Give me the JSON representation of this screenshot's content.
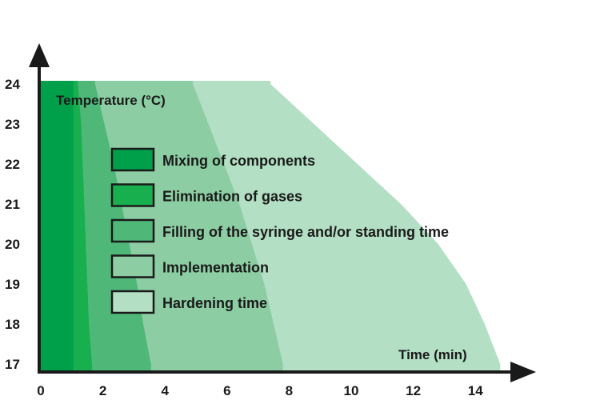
{
  "chart_data": {
    "type": "area",
    "xlabel": "Time (min)",
    "ylabel": "Temperature (°C)",
    "xlim": [
      0,
      15.2
    ],
    "ylim": [
      17,
      24
    ],
    "x_ticks": [
      0,
      2,
      4,
      6,
      8,
      10,
      12,
      14
    ],
    "y_ticks": [
      17,
      18,
      19,
      20,
      21,
      22,
      23,
      24
    ],
    "grid": false,
    "legend_placement": "center-left",
    "series": [
      {
        "name": "Hardening time",
        "color": "#b3dfc4",
        "boundary": [
          [
            7.4,
            24
          ],
          [
            8.8,
            23
          ],
          [
            10.2,
            22
          ],
          [
            11.6,
            21
          ],
          [
            12.8,
            20
          ],
          [
            13.7,
            19
          ],
          [
            14.3,
            18
          ],
          [
            14.8,
            17
          ]
        ]
      },
      {
        "name": "Implementation",
        "color": "#8ccda3",
        "boundary": [
          [
            4.9,
            24
          ],
          [
            5.4,
            23
          ],
          [
            5.9,
            22
          ],
          [
            6.4,
            21
          ],
          [
            6.8,
            20
          ],
          [
            7.2,
            19
          ],
          [
            7.5,
            18
          ],
          [
            7.8,
            17
          ]
        ]
      },
      {
        "name": "Filling of the syringe and/or standing time",
        "color": "#4fb879",
        "boundary": [
          [
            1.75,
            24
          ],
          [
            2.05,
            23
          ],
          [
            2.35,
            22
          ],
          [
            2.6,
            21
          ],
          [
            2.85,
            20
          ],
          [
            3.1,
            19
          ],
          [
            3.3,
            18
          ],
          [
            3.55,
            17
          ]
        ]
      },
      {
        "name": "Elimination of gases",
        "color": "#18b04e",
        "boundary": [
          [
            1.2,
            24
          ],
          [
            1.3,
            23
          ],
          [
            1.35,
            22
          ],
          [
            1.4,
            21
          ],
          [
            1.45,
            20
          ],
          [
            1.5,
            19
          ],
          [
            1.55,
            18
          ],
          [
            1.65,
            17
          ]
        ]
      },
      {
        "name": "Mixing of components",
        "color": "#00a04a",
        "boundary": [
          [
            1.05,
            24
          ],
          [
            1.05,
            17
          ]
        ]
      }
    ],
    "legend": [
      {
        "label": "Mixing of components",
        "color": "#00a04a"
      },
      {
        "label": "Elimination of gases",
        "color": "#18b04e"
      },
      {
        "label": "Filling of the syringe and/or standing time",
        "color": "#4fb879"
      },
      {
        "label": "Implementation",
        "color": "#8ccda3"
      },
      {
        "label": "Hardening time",
        "color": "#b3dfc4"
      }
    ]
  }
}
